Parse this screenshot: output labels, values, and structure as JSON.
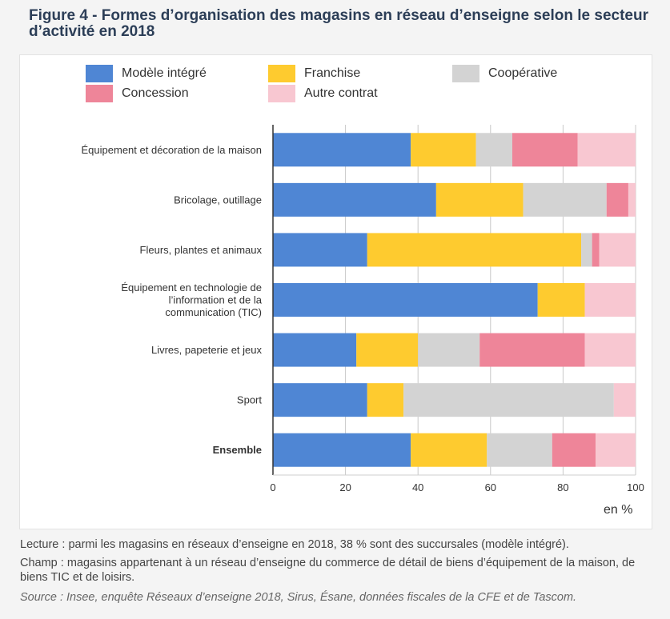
{
  "figure": {
    "title": "Figure 4 - Formes d’organisation des magasins en réseau d’enseigne selon le secteur d’activité en 2018",
    "unit_label": "en %",
    "footnotes": {
      "lecture": "Lecture : parmi les magasins en réseaux d’enseigne en 2018, 38 % sont des succursales (modèle intégré).",
      "champ": "Champ : magasins appartenant à un réseau d’enseigne du commerce de détail de biens d’équipement de la maison, de biens TIC et de loisirs.",
      "source": "Source : Insee, enquête Réseaux d’enseigne 2018, Sirus, Ésane, données fiscales de la CFE et de Tascom."
    }
  },
  "legend": [
    {
      "label": "Modèle intégré",
      "color": "#4f86d4"
    },
    {
      "label": "Franchise",
      "color": "#fecb2f"
    },
    {
      "label": "Coopérative",
      "color": "#d3d3d3"
    },
    {
      "label": "Concession",
      "color": "#ee8599"
    },
    {
      "label": "Autre contrat",
      "color": "#f8c7d1"
    }
  ],
  "chart_data": {
    "type": "bar",
    "orientation": "horizontal",
    "stacked": true,
    "title": "Figure 4 - Formes d’organisation des magasins en réseau d’enseigne selon le secteur d’activité en 2018",
    "xlabel": "en %",
    "ylabel": "",
    "xlim": [
      0,
      100
    ],
    "xticks": [
      0,
      20,
      40,
      60,
      80,
      100
    ],
    "grid": true,
    "legend_position": "top",
    "categories": [
      "Équipement et décoration de la maison",
      "Bricolage, outillage",
      "Fleurs, plantes et animaux",
      "Équipement en technologie de l’information et de la communication (TIC)",
      "Livres, papeterie et jeux",
      "Sport",
      "Ensemble"
    ],
    "category_lines": [
      [
        "Équipement et décoration de la maison"
      ],
      [
        "Bricolage, outillage"
      ],
      [
        "Fleurs, plantes et animaux"
      ],
      [
        "Équipement en technologie de",
        "l’information et de la",
        "communication (TIC)"
      ],
      [
        "Livres, papeterie et jeux"
      ],
      [
        "Sport"
      ],
      [
        "Ensemble"
      ]
    ],
    "bold_categories": [
      "Ensemble"
    ],
    "series": [
      {
        "name": "Modèle intégré",
        "values": [
          38,
          45,
          26,
          73,
          23,
          26,
          38
        ]
      },
      {
        "name": "Franchise",
        "values": [
          18,
          24,
          59,
          13,
          17,
          10,
          21
        ]
      },
      {
        "name": "Coopérative",
        "values": [
          10,
          23,
          3,
          0,
          17,
          58,
          18
        ]
      },
      {
        "name": "Concession",
        "values": [
          18,
          6,
          2,
          0,
          29,
          0,
          12
        ]
      },
      {
        "name": "Autre contrat",
        "values": [
          16,
          2,
          10,
          14,
          14,
          6,
          11
        ]
      }
    ]
  }
}
